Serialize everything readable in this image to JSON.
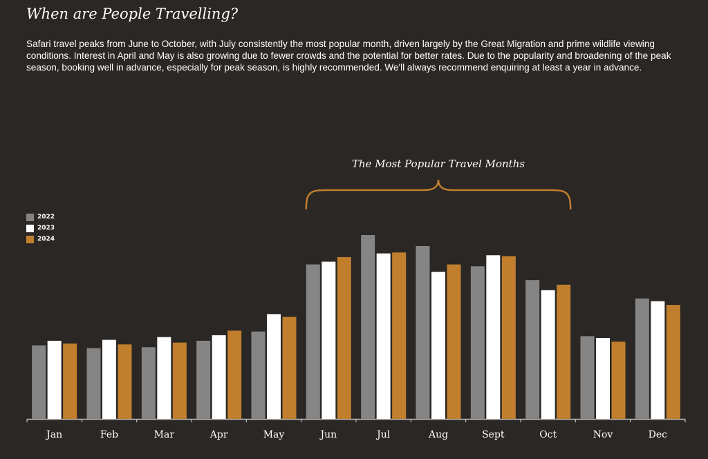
{
  "page": {
    "title": "When are People Travelling?",
    "intro": "Safari travel peaks from June to October, with July consistently the most popular month, driven largely by the Great Migration and prime wildlife viewing conditions. Interest in April and May is also growing due to fewer crowds and the potential for better rates. Due to the popularity and broadening of the peak season, booking well in advance, especially for peak season, is highly recommended. We'll always recommend enquiring at least a year in advance."
  },
  "chart_data": {
    "type": "bar",
    "categories": [
      "Jan",
      "Feb",
      "Mar",
      "Apr",
      "May",
      "Jun",
      "Jul",
      "Aug",
      "Sept",
      "Oct",
      "Nov",
      "Dec"
    ],
    "series": [
      {
        "name": "2022",
        "color": "#858585",
        "values": [
          40,
          38.5,
          39,
          42.5,
          47.5,
          84,
          100,
          94,
          83,
          75.5,
          45,
          65.5
        ]
      },
      {
        "name": "2023",
        "color": "#ffffff",
        "values": [
          42.5,
          43,
          44.5,
          45.5,
          57,
          85.5,
          90,
          80,
          89,
          70,
          44,
          64
        ]
      },
      {
        "name": "2024",
        "color": "#c17f2e",
        "values": [
          41,
          40.5,
          41.5,
          48,
          55.5,
          88,
          90.5,
          84,
          88.5,
          73,
          42,
          62
        ]
      }
    ],
    "ylim": [
      0,
      100
    ],
    "annotation": {
      "text": "The Most Popular Travel Months",
      "from": "Jun",
      "to": "Oct"
    },
    "legend_position": "left",
    "grid": false
  }
}
